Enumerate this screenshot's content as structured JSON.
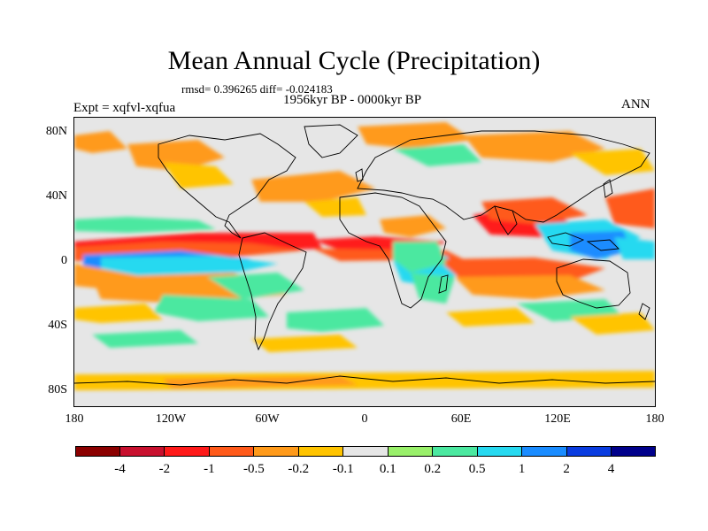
{
  "title": "Mean Annual Cycle (Precipitation)",
  "stats": "rmsd= 0.396265  diff= -0.024183",
  "period": "1956kyr BP - 0000kyr BP",
  "experiment": "Expt = xqfvl-xqfua",
  "season": "ANN",
  "map": {
    "lat_ticks": [
      "80N",
      "40N",
      "0",
      "40S",
      "80S"
    ],
    "lon_ticks": [
      "180",
      "120W",
      "60W",
      "0",
      "60E",
      "120E",
      "180"
    ],
    "projection": "cylindrical equidistant",
    "lon_range": [
      -180,
      180
    ],
    "lat_range": [
      -90,
      90
    ]
  },
  "colorbar": {
    "labels": [
      "-4",
      "-2",
      "-1",
      "-0.5",
      "-0.2",
      "-0.1",
      "0.1",
      "0.2",
      "0.5",
      "1",
      "2",
      "4"
    ],
    "colors": [
      "#8b0000",
      "#c8102e",
      "#ff1a1a",
      "#ff5a1a",
      "#ff9a1a",
      "#ffc400",
      "#e6e6e6",
      "#99f06a",
      "#4be8a0",
      "#27d9f0",
      "#1a8cff",
      "#0a3ce0",
      "#00008b"
    ]
  }
}
